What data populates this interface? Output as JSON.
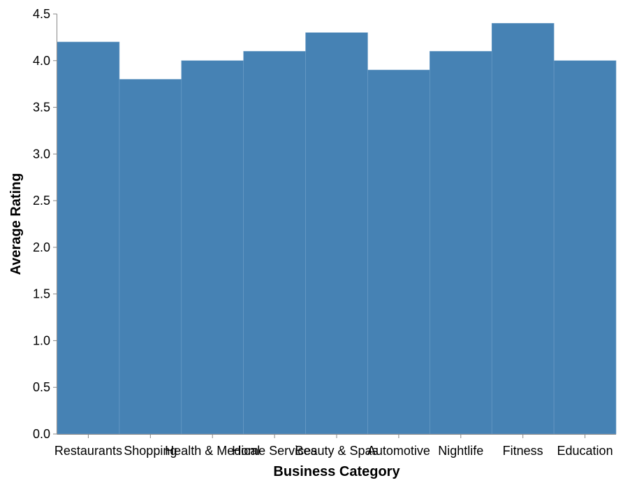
{
  "chart_data": {
    "type": "bar",
    "categories": [
      "Restaurants",
      "Shopping",
      "Health & Medical",
      "Home Services",
      "Beauty & Spas",
      "Automotive",
      "Nightlife",
      "Fitness",
      "Education"
    ],
    "values": [
      4.2,
      3.8,
      4.0,
      4.1,
      4.3,
      3.9,
      4.1,
      4.4,
      4.0
    ],
    "xlabel": "Business Category",
    "ylabel": "Average Rating",
    "ylim": [
      0,
      4.5
    ],
    "yticks": [
      0.0,
      0.5,
      1.0,
      1.5,
      2.0,
      2.5,
      3.0,
      3.5,
      4.0,
      4.5
    ],
    "ytick_labels": [
      "0.0",
      "0.5",
      "1.0",
      "1.5",
      "2.0",
      "2.5",
      "3.0",
      "3.5",
      "4.0",
      "4.5"
    ],
    "grid": false,
    "legend": "none",
    "colors": {
      "bar": "#4682b4",
      "bar_separator": "#6f9fc8",
      "axis": "#888888",
      "text": "#000000"
    }
  }
}
